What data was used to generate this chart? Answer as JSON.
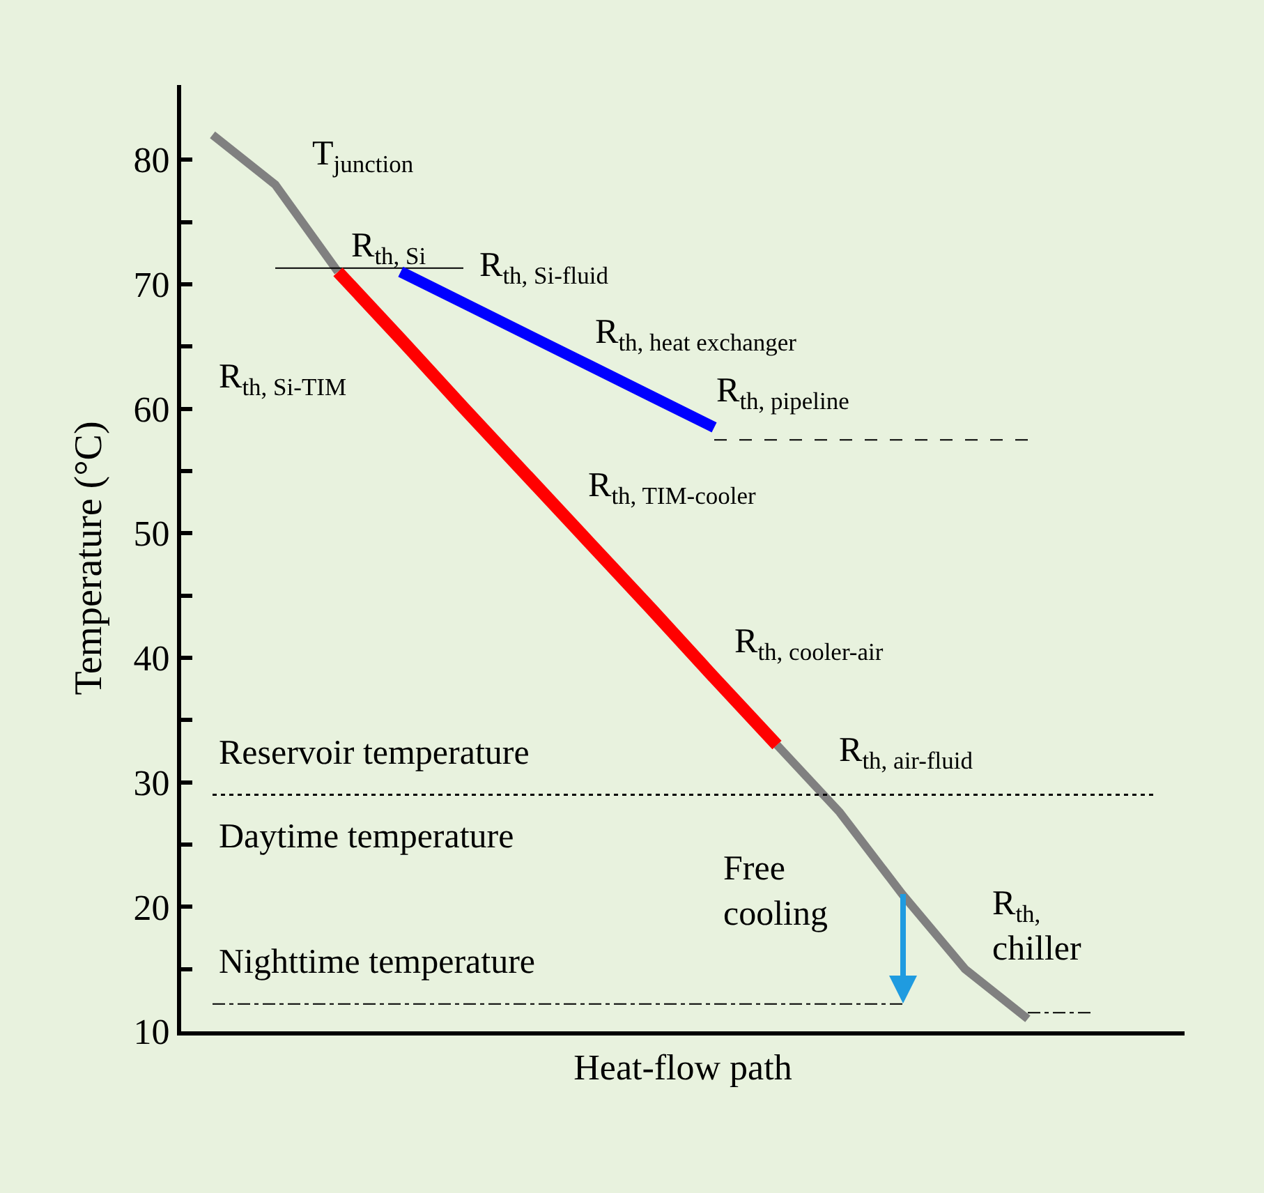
{
  "chart_data": {
    "type": "line",
    "xlabel": "Heat-flow path",
    "ylabel": "Temperature (°C)",
    "categories": [
      null,
      null,
      null,
      null,
      null,
      null,
      null,
      null,
      null,
      null,
      null,
      null,
      null,
      null,
      null,
      null
    ],
    "ylim": [
      10,
      86
    ],
    "yticks": [
      10,
      {
        "value": 15,
        "label": null
      },
      20,
      {
        "value": 25,
        "label": null
      },
      30,
      {
        "value": 35,
        "label": null
      },
      40,
      {
        "value": 45,
        "label": null
      },
      50,
      {
        "value": 55,
        "label": null
      },
      60,
      {
        "value": 65,
        "label": null
      },
      70,
      {
        "value": 75,
        "label": null
      },
      80
    ],
    "tick_labels": "y",
    "grid": false,
    "marker": "none",
    "series": [
      {
        "color": "#808080",
        "line_style": "solid",
        "values": [
          82,
          78,
          71,
          null,
          null,
          null,
          null,
          null,
          null,
          33,
          27.6,
          21,
          15,
          11,
          null,
          null
        ]
      },
      {
        "color": "#000000",
        "line_style": "solid",
        "values": [
          null,
          71.3,
          71.3,
          71.3,
          71.3,
          null,
          null,
          null,
          null,
          null,
          null,
          null,
          null,
          null,
          null,
          null
        ]
      },
      {
        "color": "#000000",
        "line_style": "dashed",
        "values": [
          null,
          null,
          null,
          null,
          null,
          null,
          null,
          null,
          57.5,
          57.5,
          57.5,
          57.5,
          57.5,
          57.5,
          null,
          null
        ]
      },
      {
        "color": "#000000",
        "line_style": "dashdot",
        "values": [
          12.2,
          12.2,
          12.2,
          12.2,
          12.2,
          12.2,
          12.2,
          12.2,
          12.2,
          12.2,
          12.2,
          12.2,
          null,
          null,
          null,
          null
        ]
      },
      {
        "color": "#000000",
        "line_style": "dashdot",
        "values": [
          null,
          null,
          null,
          null,
          null,
          null,
          null,
          null,
          null,
          null,
          null,
          null,
          null,
          11.5,
          11.5,
          null
        ]
      },
      {
        "color": "#ff0000",
        "line_style": "solid",
        "values": [
          null,
          null,
          71,
          65.6,
          60.1,
          54.7,
          49.3,
          43.9,
          38.4,
          33,
          null,
          null,
          null,
          null,
          null,
          null
        ]
      },
      {
        "color": "#0000ff",
        "line_style": "solid",
        "values": [
          null,
          null,
          null,
          71,
          68.5,
          66,
          63.5,
          61,
          58.5,
          null,
          null,
          null,
          null,
          null,
          null,
          null
        ]
      },
      {
        "color": "#000000",
        "line_style": "dotted",
        "values": [
          29,
          29,
          29,
          29,
          29,
          29,
          29,
          29,
          29,
          29,
          29,
          29,
          29,
          29,
          29,
          29
        ]
      }
    ],
    "annotations": [
      "T$_{junction}$",
      "R$_{th, Si}$",
      "R$_{th, Si-fluid}$",
      "R$_{th, heat exchanger}$",
      "R$_{th, pipeline}$",
      "R$_{th, Si-TIM}$",
      "R$_{th, TIM-cooler}$",
      "R$_{th, cooler-air}$",
      "R$_{th, air-fluid}$",
      "R$_{th,}$\nchiller",
      "Daytime temperature",
      "Nighttime temperature",
      "Free\ncooling",
      "Reservoir temperature"
    ]
  }
}
